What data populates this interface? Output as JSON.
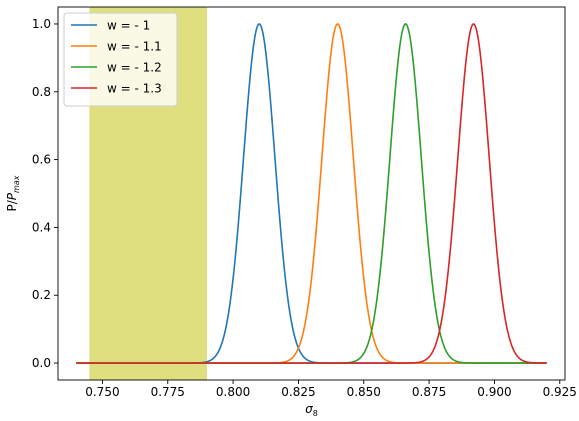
{
  "chart_data": {
    "type": "line",
    "xlabel": "σ",
    "xlabel_sub": "8",
    "ylabel": "P/P",
    "ylabel_sub": "max",
    "xlim": [
      0.733,
      0.927
    ],
    "ylim": [
      -0.05,
      1.05
    ],
    "xticks": [
      0.75,
      0.775,
      0.8,
      0.825,
      0.85,
      0.875,
      0.9,
      0.925
    ],
    "xtick_labels": [
      "0.750",
      "0.775",
      "0.800",
      "0.825",
      "0.850",
      "0.875",
      "0.900",
      "0.925"
    ],
    "yticks": [
      0.0,
      0.2,
      0.4,
      0.6,
      0.8,
      1.0
    ],
    "ytick_labels": [
      "0.0",
      "0.2",
      "0.4",
      "0.6",
      "0.8",
      "1.0"
    ],
    "x_range": [
      0.74,
      0.92
    ],
    "shaded_region": {
      "x": [
        0.745,
        0.79
      ],
      "color": "#dfdf80"
    },
    "grid": false,
    "legend_position": "top-left",
    "series": [
      {
        "name": "w = - 1",
        "color": "#1f77b4",
        "peak": 0.81,
        "sigma": 0.006
      },
      {
        "name": "w = - 1.1",
        "color": "#ff7f0e",
        "peak": 0.84,
        "sigma": 0.006
      },
      {
        "name": "w = - 1.2",
        "color": "#2ca02c",
        "peak": 0.866,
        "sigma": 0.006
      },
      {
        "name": "w = - 1.3",
        "color": "#d62728",
        "peak": 0.892,
        "sigma": 0.006
      }
    ]
  }
}
